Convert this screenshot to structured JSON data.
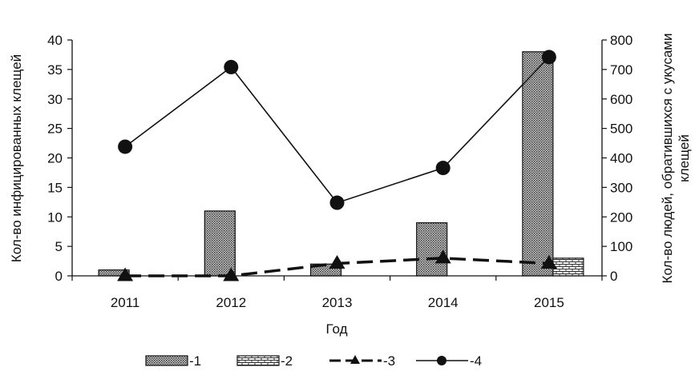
{
  "chart_data": {
    "type": "bar",
    "title": "",
    "categories": [
      "2011",
      "2012",
      "2013",
      "2014",
      "2015"
    ],
    "xlabel": "Год",
    "ylabel_left": "Кол-во инфицированных клещей",
    "ylabel_right_line1": "Кол-во людей, обратившихся с укусами",
    "ylabel_right_line2": "клещей",
    "ylim_left": [
      0,
      40
    ],
    "ylim_right": [
      0,
      800
    ],
    "yticks_left": [
      "0",
      "5",
      "10",
      "15",
      "20",
      "25",
      "30",
      "35",
      "40"
    ],
    "yticks_right": [
      "0",
      "100",
      "200",
      "300",
      "400",
      "500",
      "600",
      "700",
      "800"
    ],
    "grid": false,
    "legend_position": "bottom",
    "series": [
      {
        "name": "-1",
        "kind": "bar",
        "axis": "left",
        "pattern": "dense-dots",
        "values": [
          1,
          11,
          2,
          9,
          38
        ]
      },
      {
        "name": "-2",
        "kind": "bar",
        "axis": "left",
        "pattern": "brick",
        "values": [
          0,
          0,
          0,
          0,
          3
        ]
      },
      {
        "name": "-3",
        "kind": "line",
        "axis": "right",
        "style": "dashed",
        "marker": "triangle",
        "values": [
          0,
          0,
          42,
          60,
          42
        ]
      },
      {
        "name": "-4",
        "kind": "line",
        "axis": "right",
        "style": "solid",
        "marker": "circle",
        "values": [
          438,
          708,
          248,
          366,
          742
        ]
      }
    ]
  }
}
